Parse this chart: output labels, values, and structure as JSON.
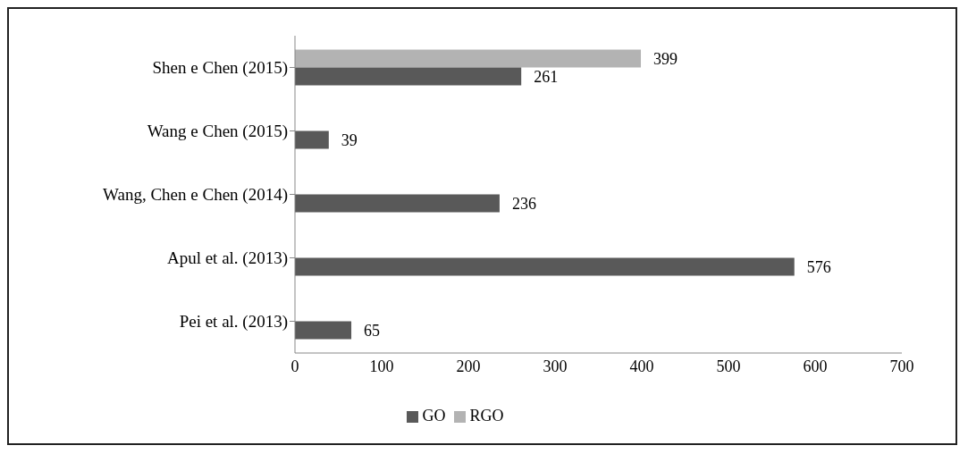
{
  "chart_data": {
    "type": "bar",
    "orientation": "horizontal",
    "categories": [
      "Shen e Chen (2015)",
      "Wang e Chen (2015)",
      "Wang, Chen e Chen (2014)",
      "Apul et al. (2013)",
      "Pei et al. (2013)"
    ],
    "series": [
      {
        "name": "RGO",
        "color": "#b3b3b3",
        "values": [
          399,
          null,
          null,
          null,
          null
        ]
      },
      {
        "name": "GO",
        "color": "#595959",
        "values": [
          261,
          39,
          236,
          576,
          65
        ]
      }
    ],
    "xlim": [
      0,
      700
    ],
    "xticks": [
      0,
      100,
      200,
      300,
      400,
      500,
      600,
      700
    ],
    "grid": false,
    "legend": "bottom",
    "data_labels": true
  }
}
